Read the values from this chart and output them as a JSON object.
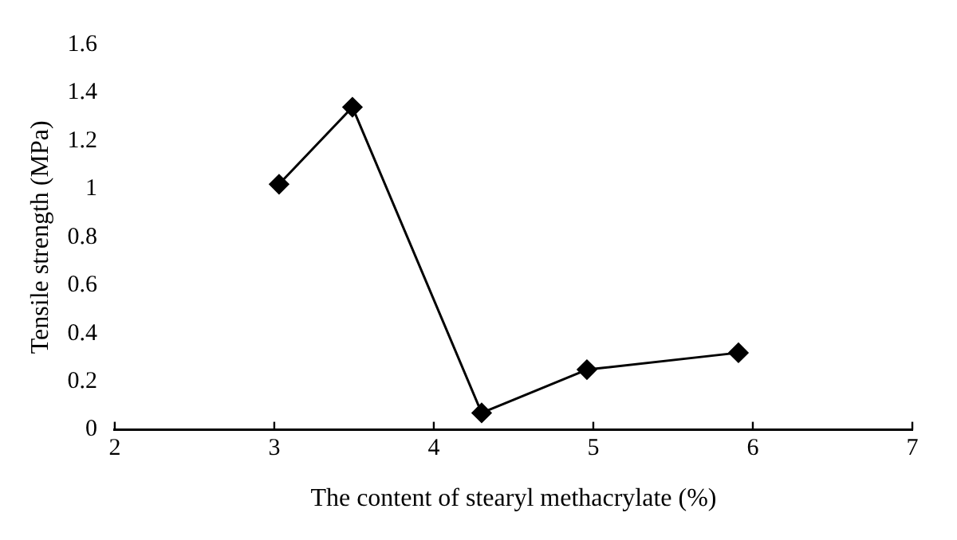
{
  "chart_data": {
    "type": "line",
    "xlabel": "The content of stearyl methacrylate (%)",
    "ylabel": "Tensile strength (MPa)",
    "x": [
      3.03,
      3.49,
      4.3,
      4.96,
      5.91
    ],
    "values": [
      1.02,
      1.34,
      0.07,
      0.25,
      0.32
    ],
    "color": "#000000",
    "marker": "diamond",
    "line_style": "solid",
    "xlim": [
      2,
      7
    ],
    "xticks": [
      2,
      3,
      4,
      5,
      6,
      7
    ],
    "ylim": [
      0,
      1.6
    ],
    "yticks": [
      0,
      0.2,
      0.4,
      0.6,
      0.8,
      1,
      1.2,
      1.4,
      1.6
    ],
    "grid": false,
    "legend": false
  }
}
